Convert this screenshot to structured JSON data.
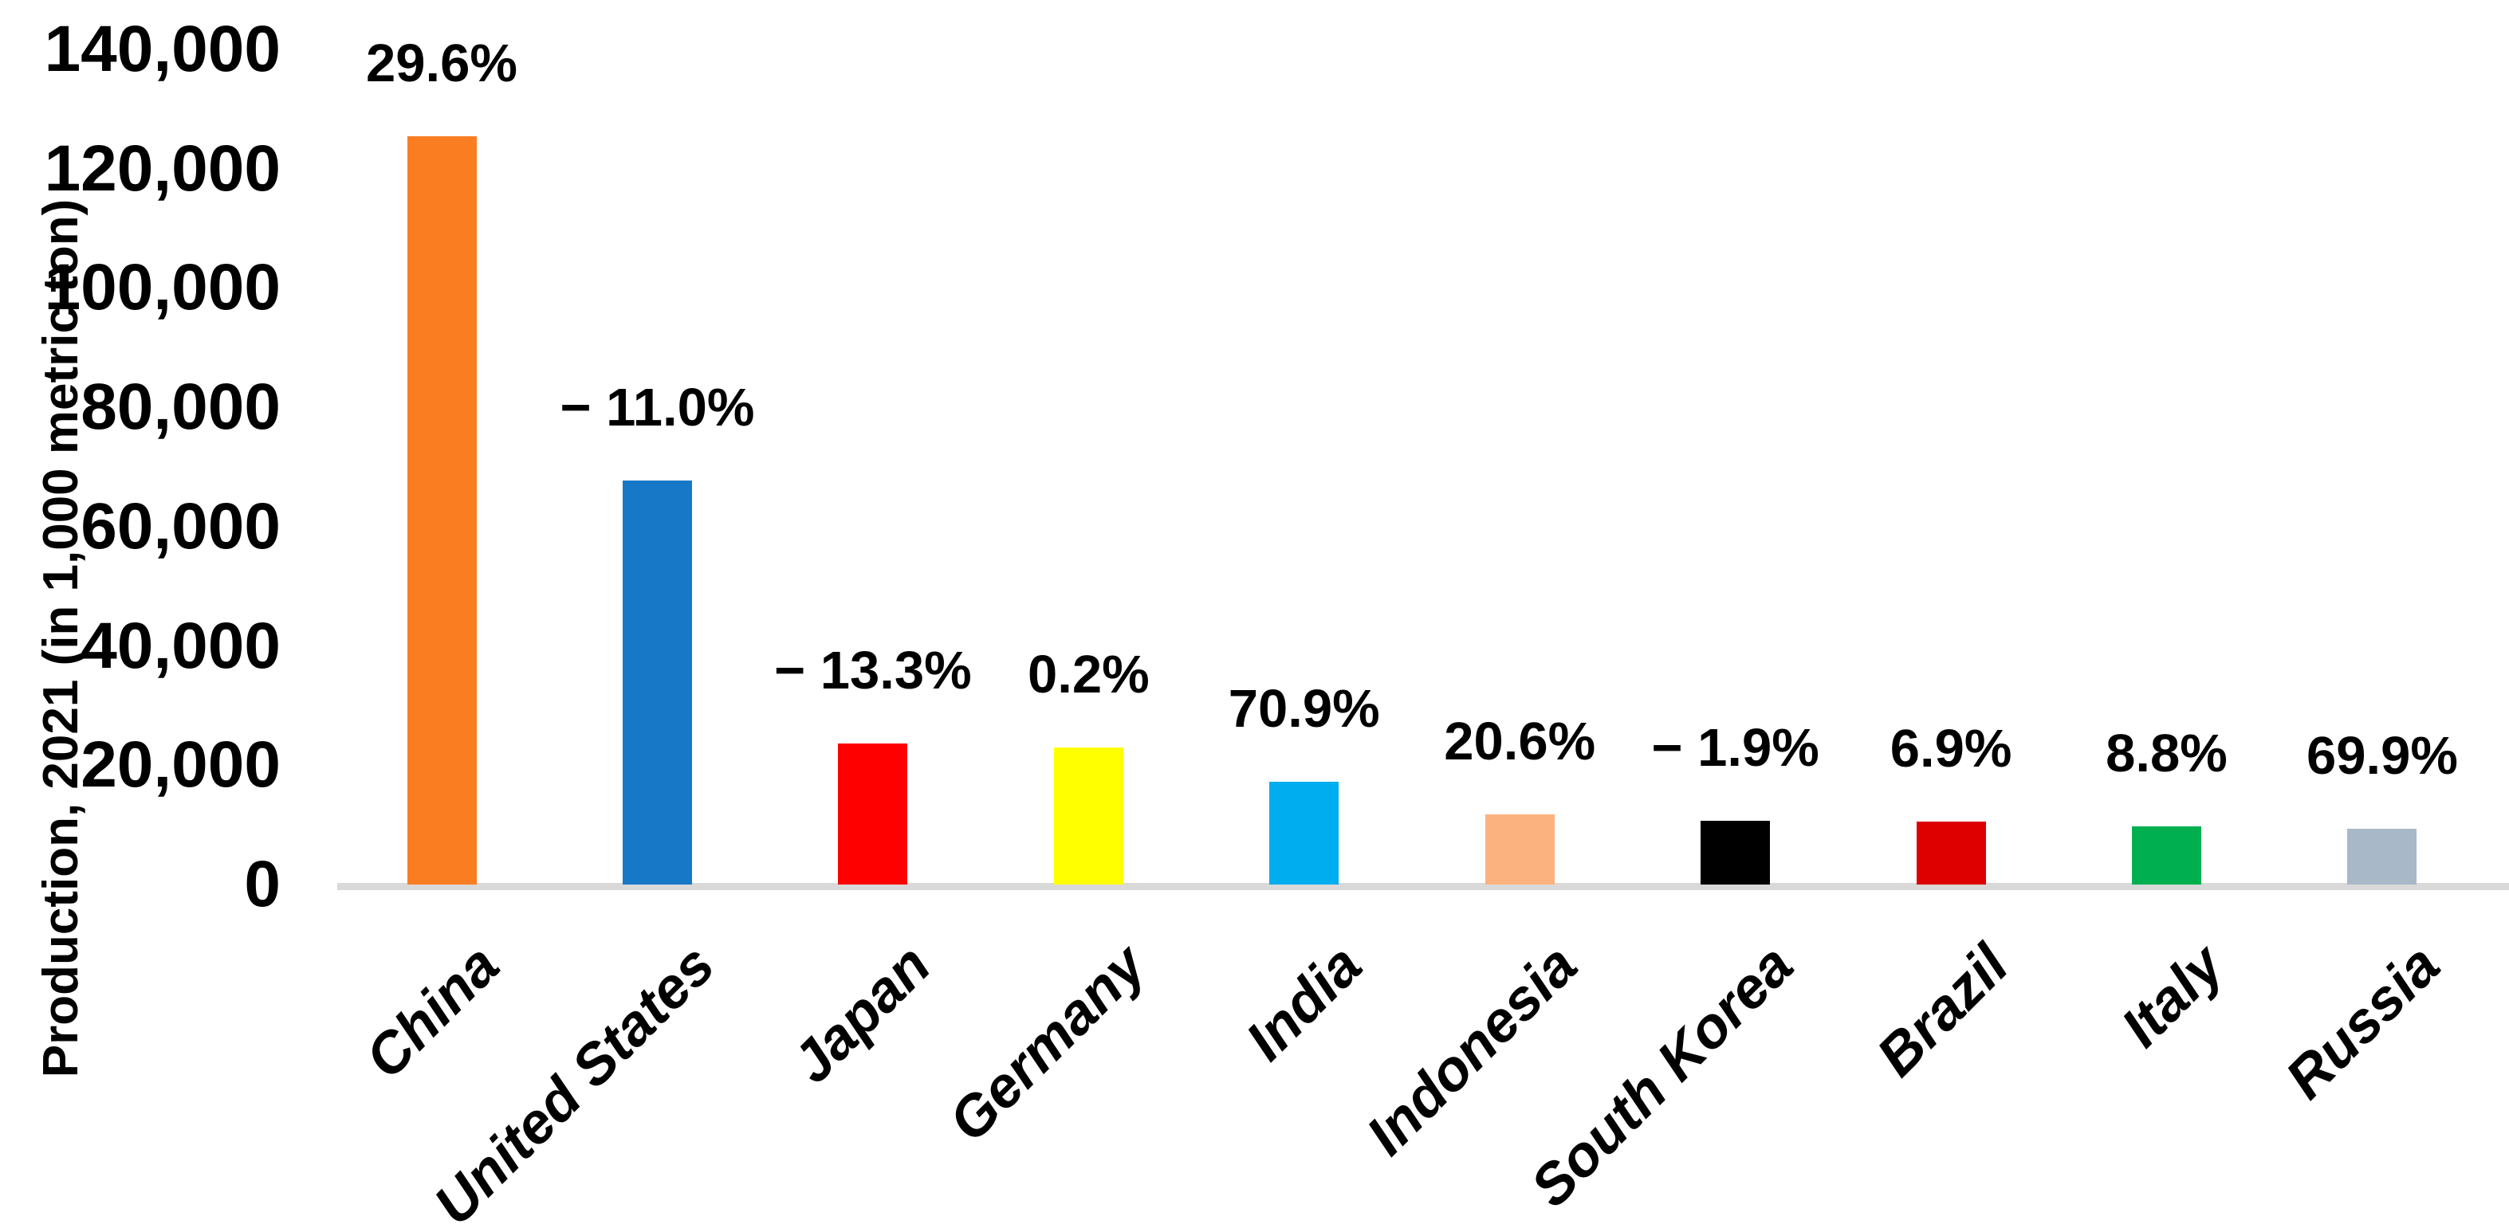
{
  "chart_data": {
    "type": "bar",
    "title": "",
    "xlabel": "",
    "ylabel": "Production, 2021 (in 1,000 metric ton)",
    "ylim": [
      0,
      140000
    ],
    "grid": false,
    "legend": false,
    "y_ticks": [
      {
        "value": 0,
        "label": "0"
      },
      {
        "value": 20000,
        "label": "20,000"
      },
      {
        "value": 40000,
        "label": "40,000"
      },
      {
        "value": 60000,
        "label": "60,000"
      },
      {
        "value": 80000,
        "label": "80,000"
      },
      {
        "value": 100000,
        "label": "100,000"
      },
      {
        "value": 120000,
        "label": "120,000"
      },
      {
        "value": 140000,
        "label": "140,000"
      }
    ],
    "categories": [
      "China",
      "United States",
      "Japan",
      "Germany",
      "India",
      "Indonesia",
      "South Korea",
      "Brazil",
      "Italy",
      "Russia"
    ],
    "values": [
      125500,
      67700,
      23600,
      23000,
      17200,
      11800,
      10700,
      10600,
      9800,
      9400
    ],
    "bar_labels": [
      "29.6%",
      "− 11.0%",
      "− 13.3%",
      "0.2%",
      "70.9%",
      "20.6%",
      "− 1.9%",
      "6.9%",
      "8.8%",
      "69.9%"
    ],
    "bar_colors": [
      "#FB7D21",
      "#1878C8",
      "#FE0000",
      "#FFFF00",
      "#00AEEF",
      "#FCB27E",
      "#000000",
      "#DE0000",
      "#00B050",
      "#A9B8C9"
    ],
    "axis_line_color": "#D9D9D9",
    "text_color": "#000000"
  }
}
